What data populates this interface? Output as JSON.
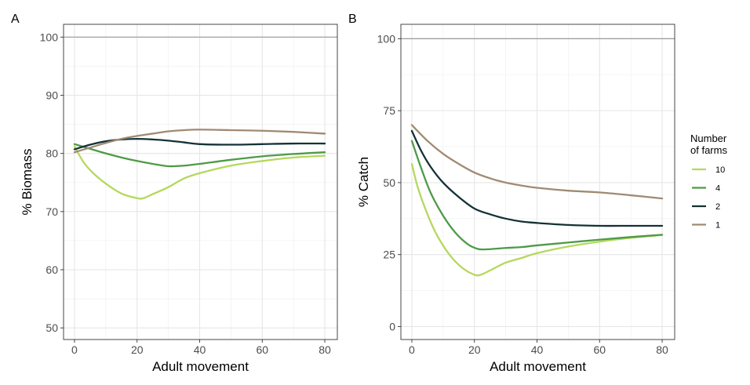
{
  "colors": {
    "10": "#b5d85c",
    "4": "#4f9a47",
    "2": "#143236",
    "1": "#a08a72"
  },
  "legend": {
    "title_line1": "Number",
    "title_line2": "of farms",
    "entries": [
      {
        "label": "10",
        "color": "#b5d85c"
      },
      {
        "label": "4",
        "color": "#4f9a47"
      },
      {
        "label": "2",
        "color": "#143236"
      },
      {
        "label": "1",
        "color": "#a08a72"
      }
    ]
  },
  "chart_data": [
    {
      "panel": "A",
      "type": "line",
      "title": "",
      "xlabel": "Adult movement",
      "ylabel": "% Biomass",
      "xlim": [
        -3.5,
        84
      ],
      "ylim": [
        48,
        102.2
      ],
      "xticks": [
        0,
        20,
        40,
        60,
        80
      ],
      "yticks": [
        50,
        60,
        70,
        80,
        90,
        100
      ],
      "reference_line": 100,
      "grid": true,
      "series": [
        {
          "name": "10",
          "x": [
            0,
            3,
            6,
            10,
            15,
            20,
            22,
            25,
            30,
            35,
            40,
            50,
            60,
            70,
            80
          ],
          "y": [
            81.2,
            78.4,
            76.6,
            74.8,
            73.1,
            72.3,
            72.3,
            73.0,
            74.2,
            75.7,
            76.6,
            77.9,
            78.7,
            79.3,
            79.6
          ]
        },
        {
          "name": "4",
          "x": [
            0,
            5,
            10,
            15,
            20,
            25,
            30,
            35,
            40,
            50,
            60,
            70,
            80
          ],
          "y": [
            81.6,
            80.8,
            80.0,
            79.3,
            78.7,
            78.2,
            77.8,
            77.9,
            78.2,
            78.9,
            79.5,
            79.9,
            80.2
          ]
        },
        {
          "name": "2",
          "x": [
            0,
            5,
            10,
            15,
            20,
            25,
            30,
            35,
            40,
            50,
            60,
            70,
            80
          ],
          "y": [
            80.7,
            81.5,
            82.1,
            82.4,
            82.5,
            82.4,
            82.2,
            81.9,
            81.6,
            81.5,
            81.6,
            81.7,
            81.7
          ]
        },
        {
          "name": "1",
          "x": [
            0,
            5,
            10,
            15,
            20,
            25,
            30,
            35,
            40,
            50,
            60,
            70,
            80
          ],
          "y": [
            80.2,
            81.0,
            81.8,
            82.5,
            83.0,
            83.4,
            83.8,
            84.0,
            84.1,
            84.0,
            83.9,
            83.7,
            83.4
          ]
        }
      ]
    },
    {
      "panel": "B",
      "type": "line",
      "title": "",
      "xlabel": "Adult movement",
      "ylabel": "% Catch",
      "xlim": [
        -3.5,
        84
      ],
      "ylim": [
        -4.5,
        105
      ],
      "xticks": [
        0,
        20,
        40,
        60,
        80
      ],
      "yticks": [
        0,
        25,
        50,
        75,
        100
      ],
      "reference_line": 100,
      "grid": true,
      "series": [
        {
          "name": "10",
          "x": [
            0,
            2,
            5,
            8,
            12,
            16,
            20,
            22,
            25,
            30,
            35,
            40,
            50,
            60,
            70,
            80
          ],
          "y": [
            56.5,
            48.0,
            39.0,
            31.8,
            25.0,
            20.5,
            18.0,
            18.0,
            19.5,
            22.2,
            23.8,
            25.5,
            27.8,
            29.5,
            30.8,
            31.8
          ]
        },
        {
          "name": "4",
          "x": [
            0,
            3,
            6,
            10,
            14,
            18,
            21,
            23,
            25,
            30,
            35,
            40,
            50,
            60,
            70,
            80
          ],
          "y": [
            64.5,
            55.0,
            46.5,
            38.5,
            32.5,
            28.5,
            27.0,
            26.8,
            26.9,
            27.3,
            27.6,
            28.2,
            29.2,
            30.2,
            31.1,
            31.9
          ]
        },
        {
          "name": "2",
          "x": [
            0,
            3,
            6,
            10,
            15,
            20,
            25,
            30,
            35,
            40,
            50,
            60,
            70,
            80
          ],
          "y": [
            68.0,
            61.0,
            55.5,
            50.0,
            45.0,
            41.0,
            39.0,
            37.5,
            36.5,
            36.0,
            35.3,
            35.0,
            35.0,
            35.0
          ]
        },
        {
          "name": "1",
          "x": [
            0,
            5,
            10,
            15,
            20,
            25,
            30,
            35,
            40,
            50,
            60,
            70,
            80
          ],
          "y": [
            70.0,
            64.5,
            60.0,
            56.5,
            53.5,
            51.5,
            50.0,
            49.0,
            48.2,
            47.2,
            46.6,
            45.6,
            44.5
          ]
        }
      ]
    }
  ]
}
